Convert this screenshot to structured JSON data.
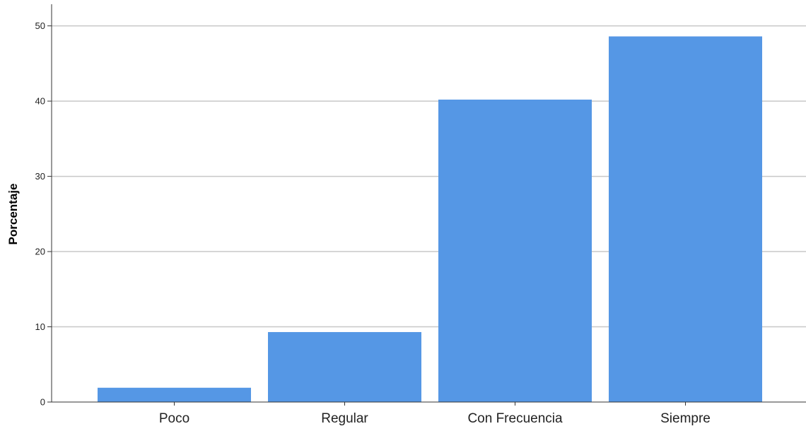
{
  "chart_data": {
    "type": "bar",
    "title": "",
    "xlabel": "",
    "ylabel": "Porcentaje",
    "categories": [
      "Poco",
      "Regular",
      "Con Frecuencia",
      "Siempre"
    ],
    "values": [
      1.9,
      9.3,
      40.2,
      48.6
    ],
    "ylim": [
      0,
      52.5
    ],
    "yticks": [
      "0",
      "10",
      "20",
      "30",
      "40",
      "50"
    ],
    "grid": true,
    "legend": "none",
    "colors": {
      "bar": "#5597E5",
      "grid": "#C8C8C8",
      "axis": "#333333"
    }
  }
}
